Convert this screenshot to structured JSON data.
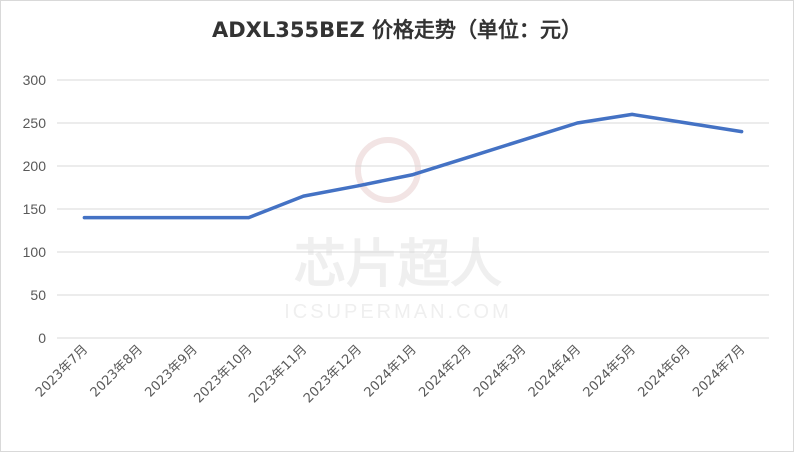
{
  "chart_data": {
    "type": "line",
    "title": "ADXL355BEZ 价格走势（单位：元）",
    "categories": [
      "2023年7月",
      "2023年8月",
      "2023年9月",
      "2023年10月",
      "2023年11月",
      "2023年12月",
      "2024年1月",
      "2024年2月",
      "2024年3月",
      "2024年4月",
      "2024年5月",
      "2024年6月",
      "2024年7月"
    ],
    "series": [
      {
        "values": [
          140,
          140,
          140,
          140,
          165,
          177,
          190,
          210,
          230,
          250,
          260,
          250,
          240
        ]
      }
    ],
    "yticks": [
      0,
      50,
      100,
      150,
      200,
      250,
      300
    ],
    "ylim": [
      0,
      300
    ],
    "grid": true,
    "legend": "none",
    "colors": {
      "line": "#4472c4",
      "grid": "#d9d9d9",
      "watermark": "#efefef"
    }
  },
  "watermark": {
    "cn": "芯片超人",
    "en": "ICSUPERMAN.COM"
  }
}
